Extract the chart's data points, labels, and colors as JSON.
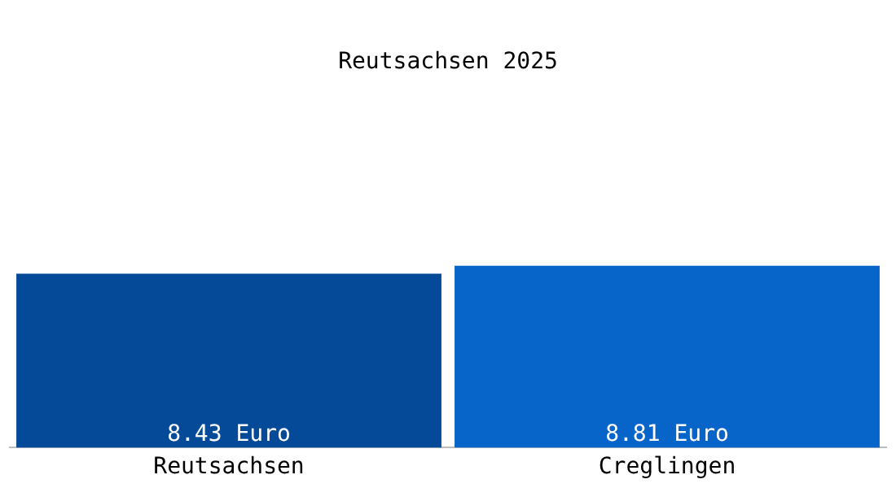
{
  "chart_data": {
    "type": "bar",
    "title": "Reutsachsen 2025",
    "categories": [
      "Reutsachsen",
      "Creglingen"
    ],
    "values": [
      8.43,
      8.81
    ],
    "colors": [
      "#044a98",
      "#0764c8"
    ],
    "value_labels": [
      "8.43 Euro",
      "8.81 Euro"
    ],
    "grid": false,
    "legend": false
  }
}
